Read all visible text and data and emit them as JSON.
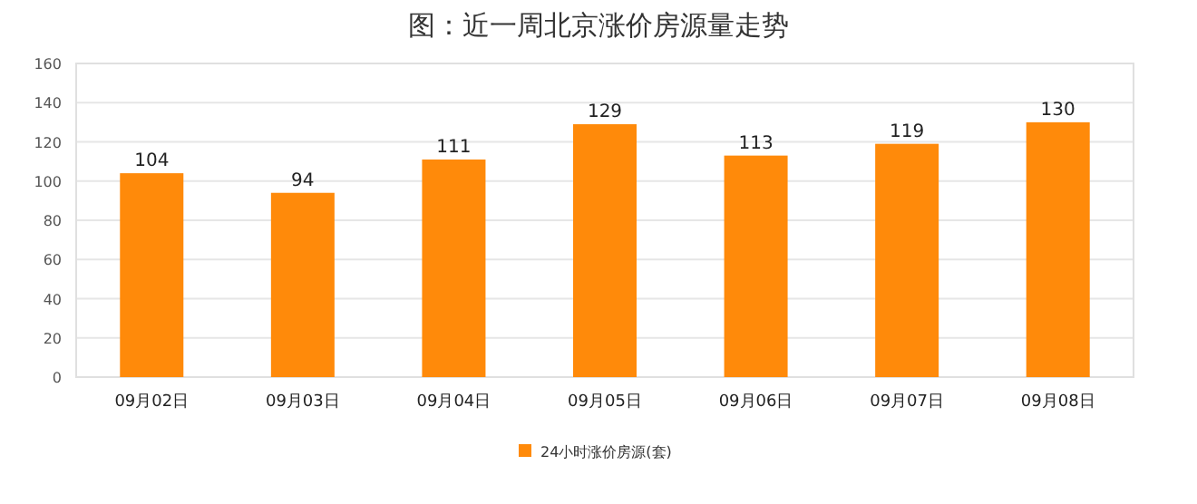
{
  "chart_data": {
    "type": "bar",
    "title": "图：近一周北京涨价房源量走势",
    "categories": [
      "09月02日",
      "09月03日",
      "09月04日",
      "09月05日",
      "09月06日",
      "09月07日",
      "09月08日"
    ],
    "series": [
      {
        "name": "24小时涨价房源(套)",
        "color": "#ff8a0a",
        "values": [
          104,
          94,
          111,
          129,
          113,
          119,
          130
        ]
      }
    ],
    "ylim": [
      0,
      160
    ],
    "yticks": [
      0,
      20,
      40,
      60,
      80,
      100,
      120,
      140,
      160
    ],
    "grid": "y",
    "legend": "bottom",
    "data_labels": true
  }
}
